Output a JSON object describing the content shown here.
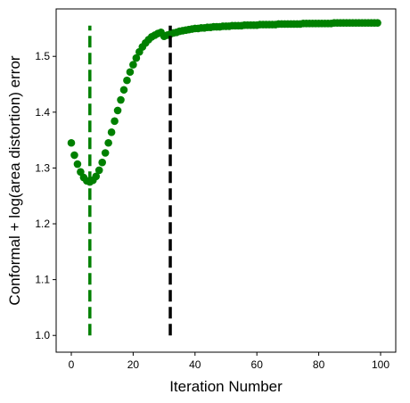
{
  "chart_data": {
    "type": "scatter",
    "title": "",
    "xlabel": "Iteration Number",
    "ylabel": "Conformal + log(area distortion) error",
    "xlim": [
      -4.9,
      104.9
    ],
    "ylim": [
      0.97,
      1.585
    ],
    "x_ticks": [
      "0",
      "20",
      "40",
      "60",
      "80",
      "100"
    ],
    "y_ticks": [
      "1.0",
      "1.1",
      "1.2",
      "1.3",
      "1.4",
      "1.5"
    ],
    "x_tick_values": [
      0,
      20,
      40,
      60,
      80,
      100
    ],
    "y_tick_values": [
      1.0,
      1.1,
      1.2,
      1.3,
      1.4,
      1.5
    ],
    "grid": false,
    "series": [
      {
        "color": "#008000",
        "marker": "circle",
        "x": [
          0,
          1,
          2,
          3,
          4,
          5,
          6,
          7,
          8,
          9,
          10,
          11,
          12,
          13,
          14,
          15,
          16,
          17,
          18,
          19,
          20,
          21,
          22,
          23,
          24,
          25,
          26,
          27,
          28,
          29,
          30,
          31,
          32,
          33,
          34,
          35,
          36,
          37,
          38,
          39,
          40,
          41,
          42,
          43,
          44,
          45,
          46,
          47,
          48,
          49,
          50,
          51,
          52,
          53,
          54,
          55,
          56,
          57,
          58,
          59,
          60,
          61,
          62,
          63,
          64,
          65,
          66,
          67,
          68,
          69,
          70,
          71,
          72,
          73,
          74,
          75,
          76,
          77,
          78,
          79,
          80,
          81,
          82,
          83,
          84,
          85,
          86,
          87,
          88,
          89,
          90,
          91,
          92,
          93,
          94,
          95,
          96,
          97,
          98,
          99
        ],
        "y": [
          1.345,
          1.323,
          1.307,
          1.293,
          1.283,
          1.277,
          1.275,
          1.278,
          1.285,
          1.296,
          1.31,
          1.327,
          1.345,
          1.364,
          1.384,
          1.403,
          1.422,
          1.44,
          1.457,
          1.472,
          1.485,
          1.497,
          1.508,
          1.517,
          1.524,
          1.53,
          1.535,
          1.538,
          1.541,
          1.543,
          1.536,
          1.538,
          1.54,
          1.542,
          1.543,
          1.545,
          1.546,
          1.547,
          1.548,
          1.549,
          1.55,
          1.55,
          1.551,
          1.551,
          1.552,
          1.552,
          1.553,
          1.553,
          1.553,
          1.554,
          1.554,
          1.554,
          1.555,
          1.555,
          1.555,
          1.555,
          1.556,
          1.556,
          1.556,
          1.556,
          1.556,
          1.557,
          1.557,
          1.557,
          1.557,
          1.557,
          1.557,
          1.558,
          1.558,
          1.558,
          1.558,
          1.558,
          1.558,
          1.558,
          1.558,
          1.559,
          1.559,
          1.559,
          1.559,
          1.559,
          1.559,
          1.559,
          1.559,
          1.559,
          1.559,
          1.56,
          1.56,
          1.56,
          1.56,
          1.56,
          1.56,
          1.56,
          1.56,
          1.56,
          1.56,
          1.56,
          1.56,
          1.56,
          1.56,
          1.56
        ]
      }
    ],
    "vertical_lines": [
      {
        "x": 6,
        "y0": 1.0,
        "y1": 1.555,
        "color": "#008000",
        "style": "dashed"
      },
      {
        "x": 32,
        "y0": 1.0,
        "y1": 1.555,
        "color": "#000000",
        "style": "dashed"
      }
    ]
  }
}
